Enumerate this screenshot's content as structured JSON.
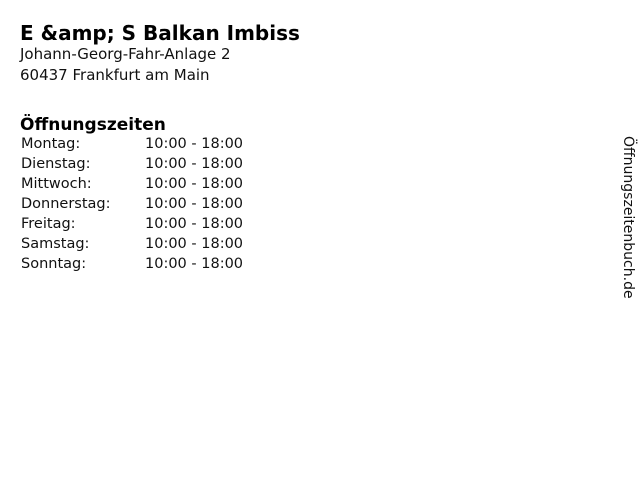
{
  "page_title": "E &amp; S Balkan Imbiss",
  "address": {
    "line1": "Johann-Georg-Fahr-Anlage 2",
    "line2": "60437 Frankfurt am Main"
  },
  "hours": {
    "heading": "Öffnungszeiten",
    "rows": [
      {
        "day": "Montag:",
        "time": "10:00 - 18:00"
      },
      {
        "day": "Dienstag:",
        "time": "10:00 - 18:00"
      },
      {
        "day": "Mittwoch:",
        "time": "10:00 - 18:00"
      },
      {
        "day": "Donnerstag:",
        "time": "10:00 - 18:00"
      },
      {
        "day": "Freitag:",
        "time": "10:00 - 18:00"
      },
      {
        "day": "Samstag:",
        "time": "10:00 - 18:00"
      },
      {
        "day": "Sonntag:",
        "time": "10:00 - 18:00"
      }
    ]
  },
  "watermark": "Öffnungszeitenbuch.de",
  "colors": {
    "text": "#000000",
    "background": "#ffffff"
  }
}
